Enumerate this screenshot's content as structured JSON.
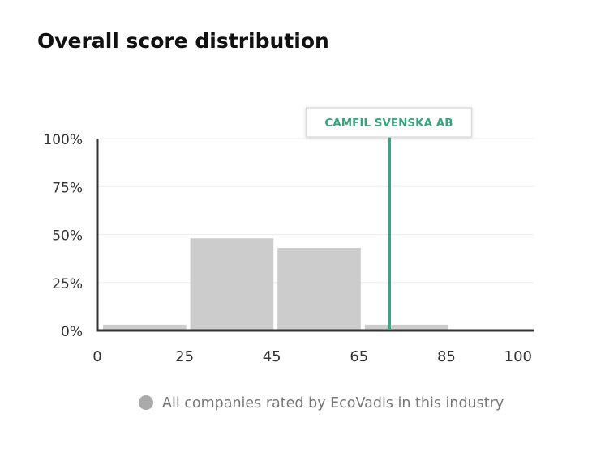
{
  "chart_data": {
    "type": "histogram",
    "title": "Overall score distribution",
    "bins": [
      0,
      25,
      45,
      65,
      85,
      100
    ],
    "series": [
      {
        "name": "All companies rated by EcoVadis in this industry",
        "color": "#cccccc",
        "values": [
          3,
          48,
          43,
          3,
          0
        ]
      }
    ],
    "ylim": [
      0,
      100
    ],
    "yticks": [
      {
        "value": 0,
        "label": "0%"
      },
      {
        "value": 25,
        "label": "25%"
      },
      {
        "value": 50,
        "label": "50%"
      },
      {
        "value": 75,
        "label": "75%"
      },
      {
        "value": 100,
        "label": "100%"
      }
    ],
    "marker": {
      "label": "CAMFIL SVENSKA AB",
      "value": 72,
      "color": "#3aa57c"
    },
    "grid": true
  }
}
